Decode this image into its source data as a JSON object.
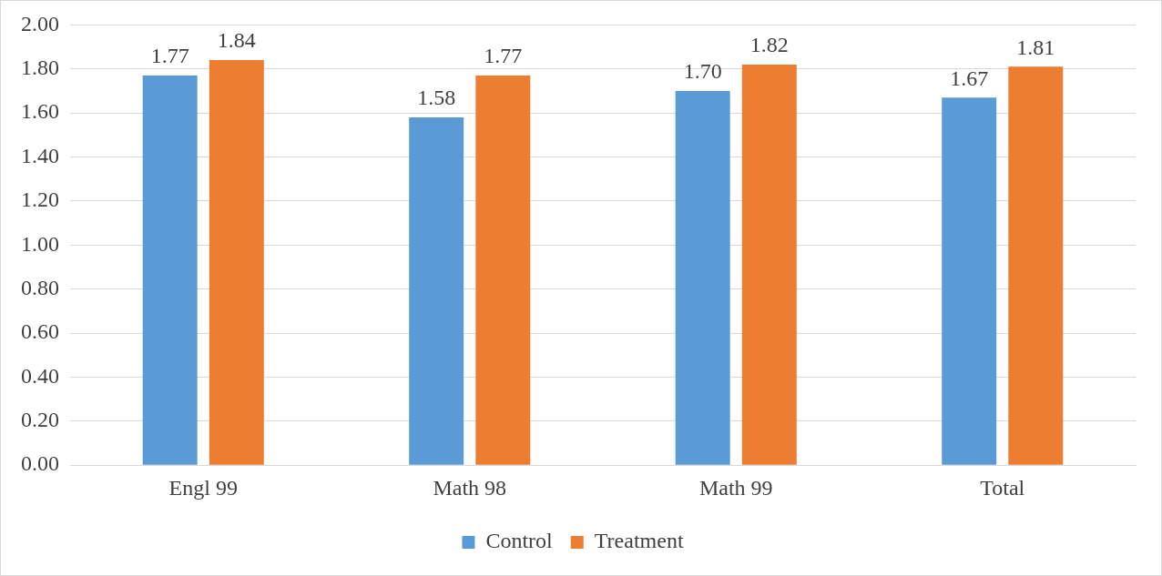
{
  "chart_data": {
    "type": "bar",
    "categories": [
      "Engl 99",
      "Math 98",
      "Math 99",
      "Total"
    ],
    "series": [
      {
        "name": "Control",
        "color": "#5b9bd5",
        "values": [
          1.77,
          1.58,
          1.7,
          1.67
        ],
        "value_labels": [
          "1.77",
          "1.58",
          "1.70",
          "1.67"
        ]
      },
      {
        "name": "Treatment",
        "color": "#ed7d31",
        "values": [
          1.84,
          1.77,
          1.82,
          1.81
        ],
        "value_labels": [
          "1.84",
          "1.77",
          "1.82",
          "1.81"
        ]
      }
    ],
    "ylim": [
      0,
      2
    ],
    "yticks": [
      {
        "value": 0,
        "label": "0.00"
      },
      {
        "value": 0.2,
        "label": "0.20"
      },
      {
        "value": 0.4,
        "label": "0.40"
      },
      {
        "value": 0.6,
        "label": "0.60"
      },
      {
        "value": 0.8,
        "label": "0.80"
      },
      {
        "value": 1,
        "label": "1.00"
      },
      {
        "value": 1.2,
        "label": "1.20"
      },
      {
        "value": 1.4,
        "label": "1.40"
      },
      {
        "value": 1.6,
        "label": "1.60"
      },
      {
        "value": 1.8,
        "label": "1.80"
      },
      {
        "value": 2,
        "label": "2.00"
      }
    ],
    "grid": "y",
    "legend": "bottom"
  }
}
